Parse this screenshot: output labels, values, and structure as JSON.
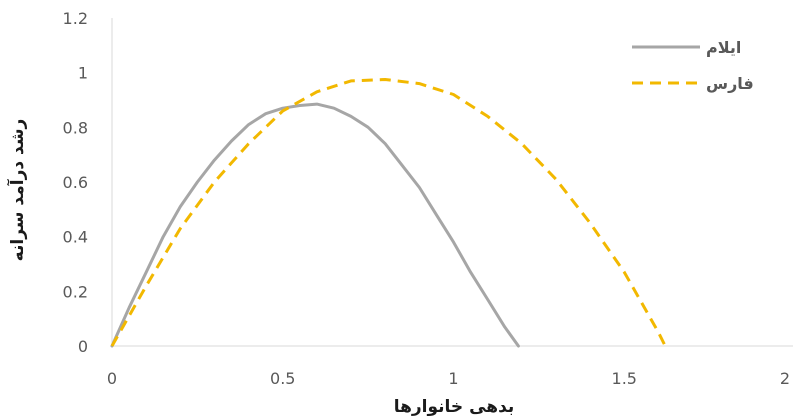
{
  "chart_data": {
    "type": "line",
    "title": "",
    "xlabel": "بدهی خانوارها",
    "ylabel": "رشد درآمد سرانه",
    "xlim": [
      0,
      2
    ],
    "ylim": [
      0,
      1.2
    ],
    "x_ticks": [
      "0",
      "0.5",
      "1",
      "1.5",
      "2"
    ],
    "y_ticks": [
      "0",
      "0.2",
      "0.4",
      "0.6",
      "0.8",
      "1",
      "1.2"
    ],
    "grid": false,
    "legend_position": "top-right",
    "series": [
      {
        "name": "ایلام",
        "color": "#a6a6a6",
        "line_style": "solid",
        "x": [
          0,
          0.05,
          0.1,
          0.15,
          0.2,
          0.25,
          0.3,
          0.35,
          0.4,
          0.45,
          0.5,
          0.55,
          0.6,
          0.65,
          0.7,
          0.75,
          0.8,
          0.85,
          0.9,
          0.95,
          1.0,
          1.05,
          1.1,
          1.15,
          1.19
        ],
        "y": [
          0,
          0.14,
          0.27,
          0.4,
          0.51,
          0.6,
          0.68,
          0.75,
          0.81,
          0.85,
          0.87,
          0.88,
          0.885,
          0.87,
          0.84,
          0.8,
          0.74,
          0.66,
          0.58,
          0.48,
          0.38,
          0.27,
          0.17,
          0.07,
          0
        ]
      },
      {
        "name": "فارس",
        "color": "#f2b800",
        "line_style": "dashed",
        "x": [
          0,
          0.1,
          0.2,
          0.3,
          0.4,
          0.5,
          0.6,
          0.7,
          0.8,
          0.9,
          1.0,
          1.1,
          1.2,
          1.3,
          1.4,
          1.5,
          1.6,
          1.62
        ],
        "y": [
          0,
          0.22,
          0.43,
          0.6,
          0.74,
          0.86,
          0.93,
          0.97,
          0.975,
          0.96,
          0.92,
          0.84,
          0.74,
          0.61,
          0.45,
          0.27,
          0.05,
          0
        ]
      }
    ]
  }
}
